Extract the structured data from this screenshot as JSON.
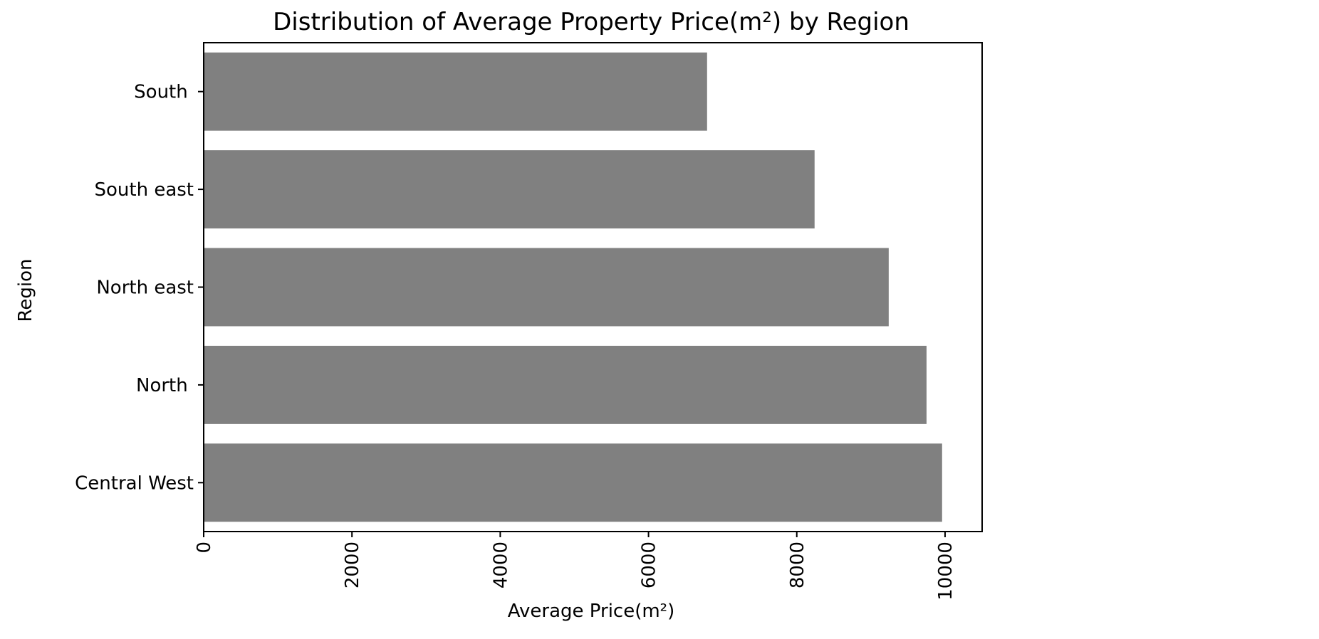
{
  "chart_data": {
    "type": "bar",
    "orientation": "horizontal",
    "title": "Distribution of Average Property Price(m²) by Region",
    "xlabel": "Average Price(m²)",
    "ylabel": "Region",
    "categories": [
      "Central West",
      "North ",
      "North east",
      "South east",
      "South "
    ],
    "values": [
      9960,
      9750,
      9240,
      8240,
      6790
    ],
    "xlim": [
      0,
      10500
    ],
    "xticks": [
      0,
      2000,
      4000,
      6000,
      8000,
      10000
    ],
    "xtick_labels": [
      "0",
      "2000",
      "4000",
      "6000",
      "8000",
      "10000"
    ],
    "xtick_label_rotation": "vertical",
    "grid": false,
    "legend": "none",
    "bar_color": "#808080"
  }
}
